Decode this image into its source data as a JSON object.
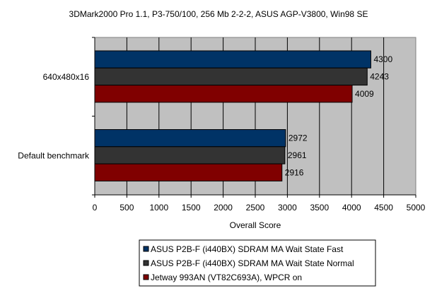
{
  "chart_data": {
    "type": "bar",
    "orientation": "horizontal",
    "title": "3DMark2000 Pro 1.1, P3-750/100, 256 Mb 2-2-2, ASUS AGP-V3800, Win98 SE",
    "xlabel": "Overall Score",
    "ylabel": "",
    "xlim": [
      0,
      5000
    ],
    "xticks": [
      "0",
      "500",
      "1000",
      "1500",
      "2000",
      "2500",
      "3000",
      "3500",
      "4000",
      "4500",
      "5000"
    ],
    "grid": true,
    "legend_position": "bottom",
    "categories": [
      "640x480x16",
      "Default benchmark"
    ],
    "series": [
      {
        "name": "ASUS P2B-F (i440BX) SDRAM MA Wait State Fast",
        "color": "#003366",
        "values": [
          4300,
          2972
        ]
      },
      {
        "name": "ASUS P2B-F (i440BX) SDRAM MA Wait State Normal",
        "color": "#333333",
        "values": [
          4243,
          2961
        ]
      },
      {
        "name": "Jetway 993AN (VT82C693A), WPCR on",
        "color": "#800000",
        "values": [
          4009,
          2916
        ]
      }
    ]
  }
}
